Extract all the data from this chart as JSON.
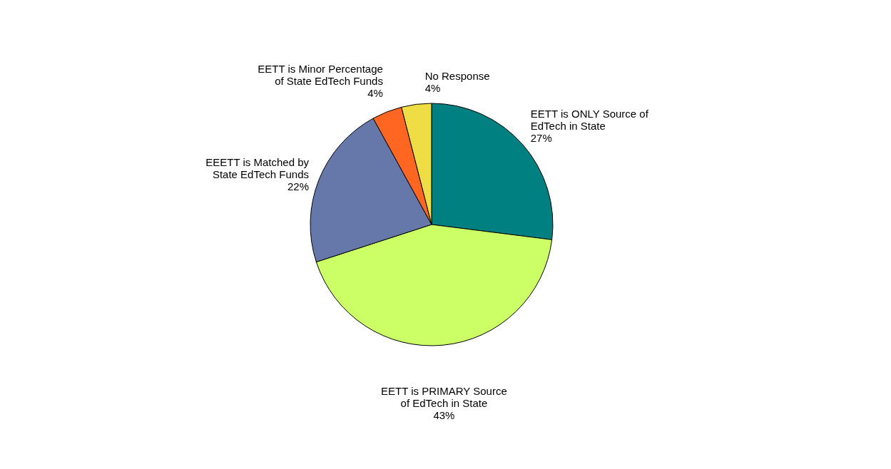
{
  "chart_data": {
    "type": "pie",
    "categories": [
      "EETT is ONLY Source of EdTech in State",
      "EETT is PRIMARY Source of EdTech in State",
      "EEETT is Matched by State EdTech Funds",
      "EETT is Minor Percentage of State EdTech Funds",
      "No Response"
    ],
    "values": [
      27,
      43,
      22,
      4,
      4
    ],
    "value_labels": [
      "27%",
      "43%",
      "22%",
      "4%",
      "4%"
    ],
    "colors": [
      "#008080",
      "#ccff66",
      "#6677aa",
      "#ff6622",
      "#eedd44"
    ],
    "legend": false
  }
}
